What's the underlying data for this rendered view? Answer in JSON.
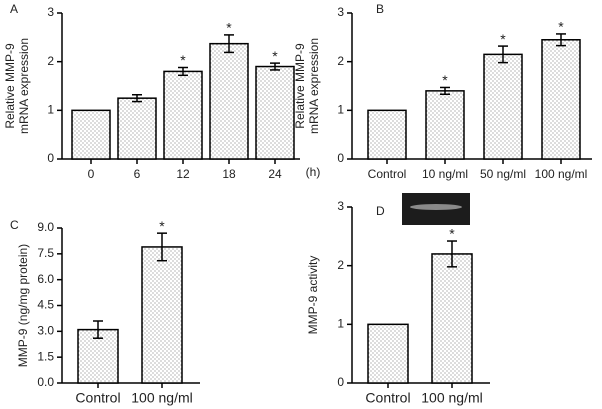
{
  "chart_data": [
    {
      "type": "bar",
      "panel": "A",
      "ylabel": [
        "Relative MMP-9",
        "mRNA expression"
      ],
      "xunit": "(h)",
      "categories": [
        "0",
        "6",
        "12",
        "18",
        "24"
      ],
      "values": [
        1,
        1.25,
        1.8,
        2.37,
        1.9
      ],
      "errors": [
        0,
        0.07,
        0.08,
        0.18,
        0.07
      ],
      "markers": [
        null,
        null,
        "*",
        "*",
        "*"
      ],
      "ylim": [
        0,
        3
      ],
      "yticks": [
        0,
        1,
        2,
        3
      ],
      "color": "#ffffff"
    },
    {
      "type": "bar",
      "panel": "B",
      "ylabel": [
        "Relative MMP-9",
        "mRNA expression"
      ],
      "categories": [
        "Control",
        "10 ng/ml",
        "50 ng/ml",
        "100 ng/ml"
      ],
      "values": [
        1,
        1.4,
        2.15,
        2.45
      ],
      "errors": [
        0,
        0.07,
        0.17,
        0.12
      ],
      "markers": [
        null,
        "*",
        "*",
        "*"
      ],
      "ylim": [
        0,
        3
      ],
      "yticks": [
        0,
        1,
        2,
        3
      ],
      "color": "#ffffff"
    },
    {
      "type": "bar",
      "panel": "C",
      "ylabel": [
        "MMP-9 (ng/mg protein)"
      ],
      "categories": [
        "Control",
        "100 ng/ml"
      ],
      "values": [
        3.1,
        7.9
      ],
      "errors": [
        0.5,
        0.8
      ],
      "markers": [
        null,
        "*"
      ],
      "ylim": [
        0,
        9
      ],
      "yticks": [
        {
          "value": 0,
          "label": "0.0"
        },
        {
          "value": 1.5,
          "label": "1.5"
        },
        {
          "value": 3,
          "label": "3.0"
        },
        {
          "value": 4.5,
          "label": "4.5"
        },
        {
          "value": 6,
          "label": "6.0"
        },
        {
          "value": 7.5,
          "label": "7.5"
        },
        {
          "value": 9,
          "label": "9.0"
        }
      ],
      "color": "#ffffff"
    },
    {
      "type": "bar",
      "panel": "D",
      "ylabel": [
        "MMP-9 activity"
      ],
      "categories": [
        "Control",
        "100 ng/ml"
      ],
      "values": [
        1,
        2.2
      ],
      "errors": [
        0,
        0.22
      ],
      "markers": [
        null,
        "*"
      ],
      "ylim": [
        0,
        3
      ],
      "yticks": [
        0,
        1,
        2,
        3
      ],
      "color": "#ffffff"
    }
  ]
}
